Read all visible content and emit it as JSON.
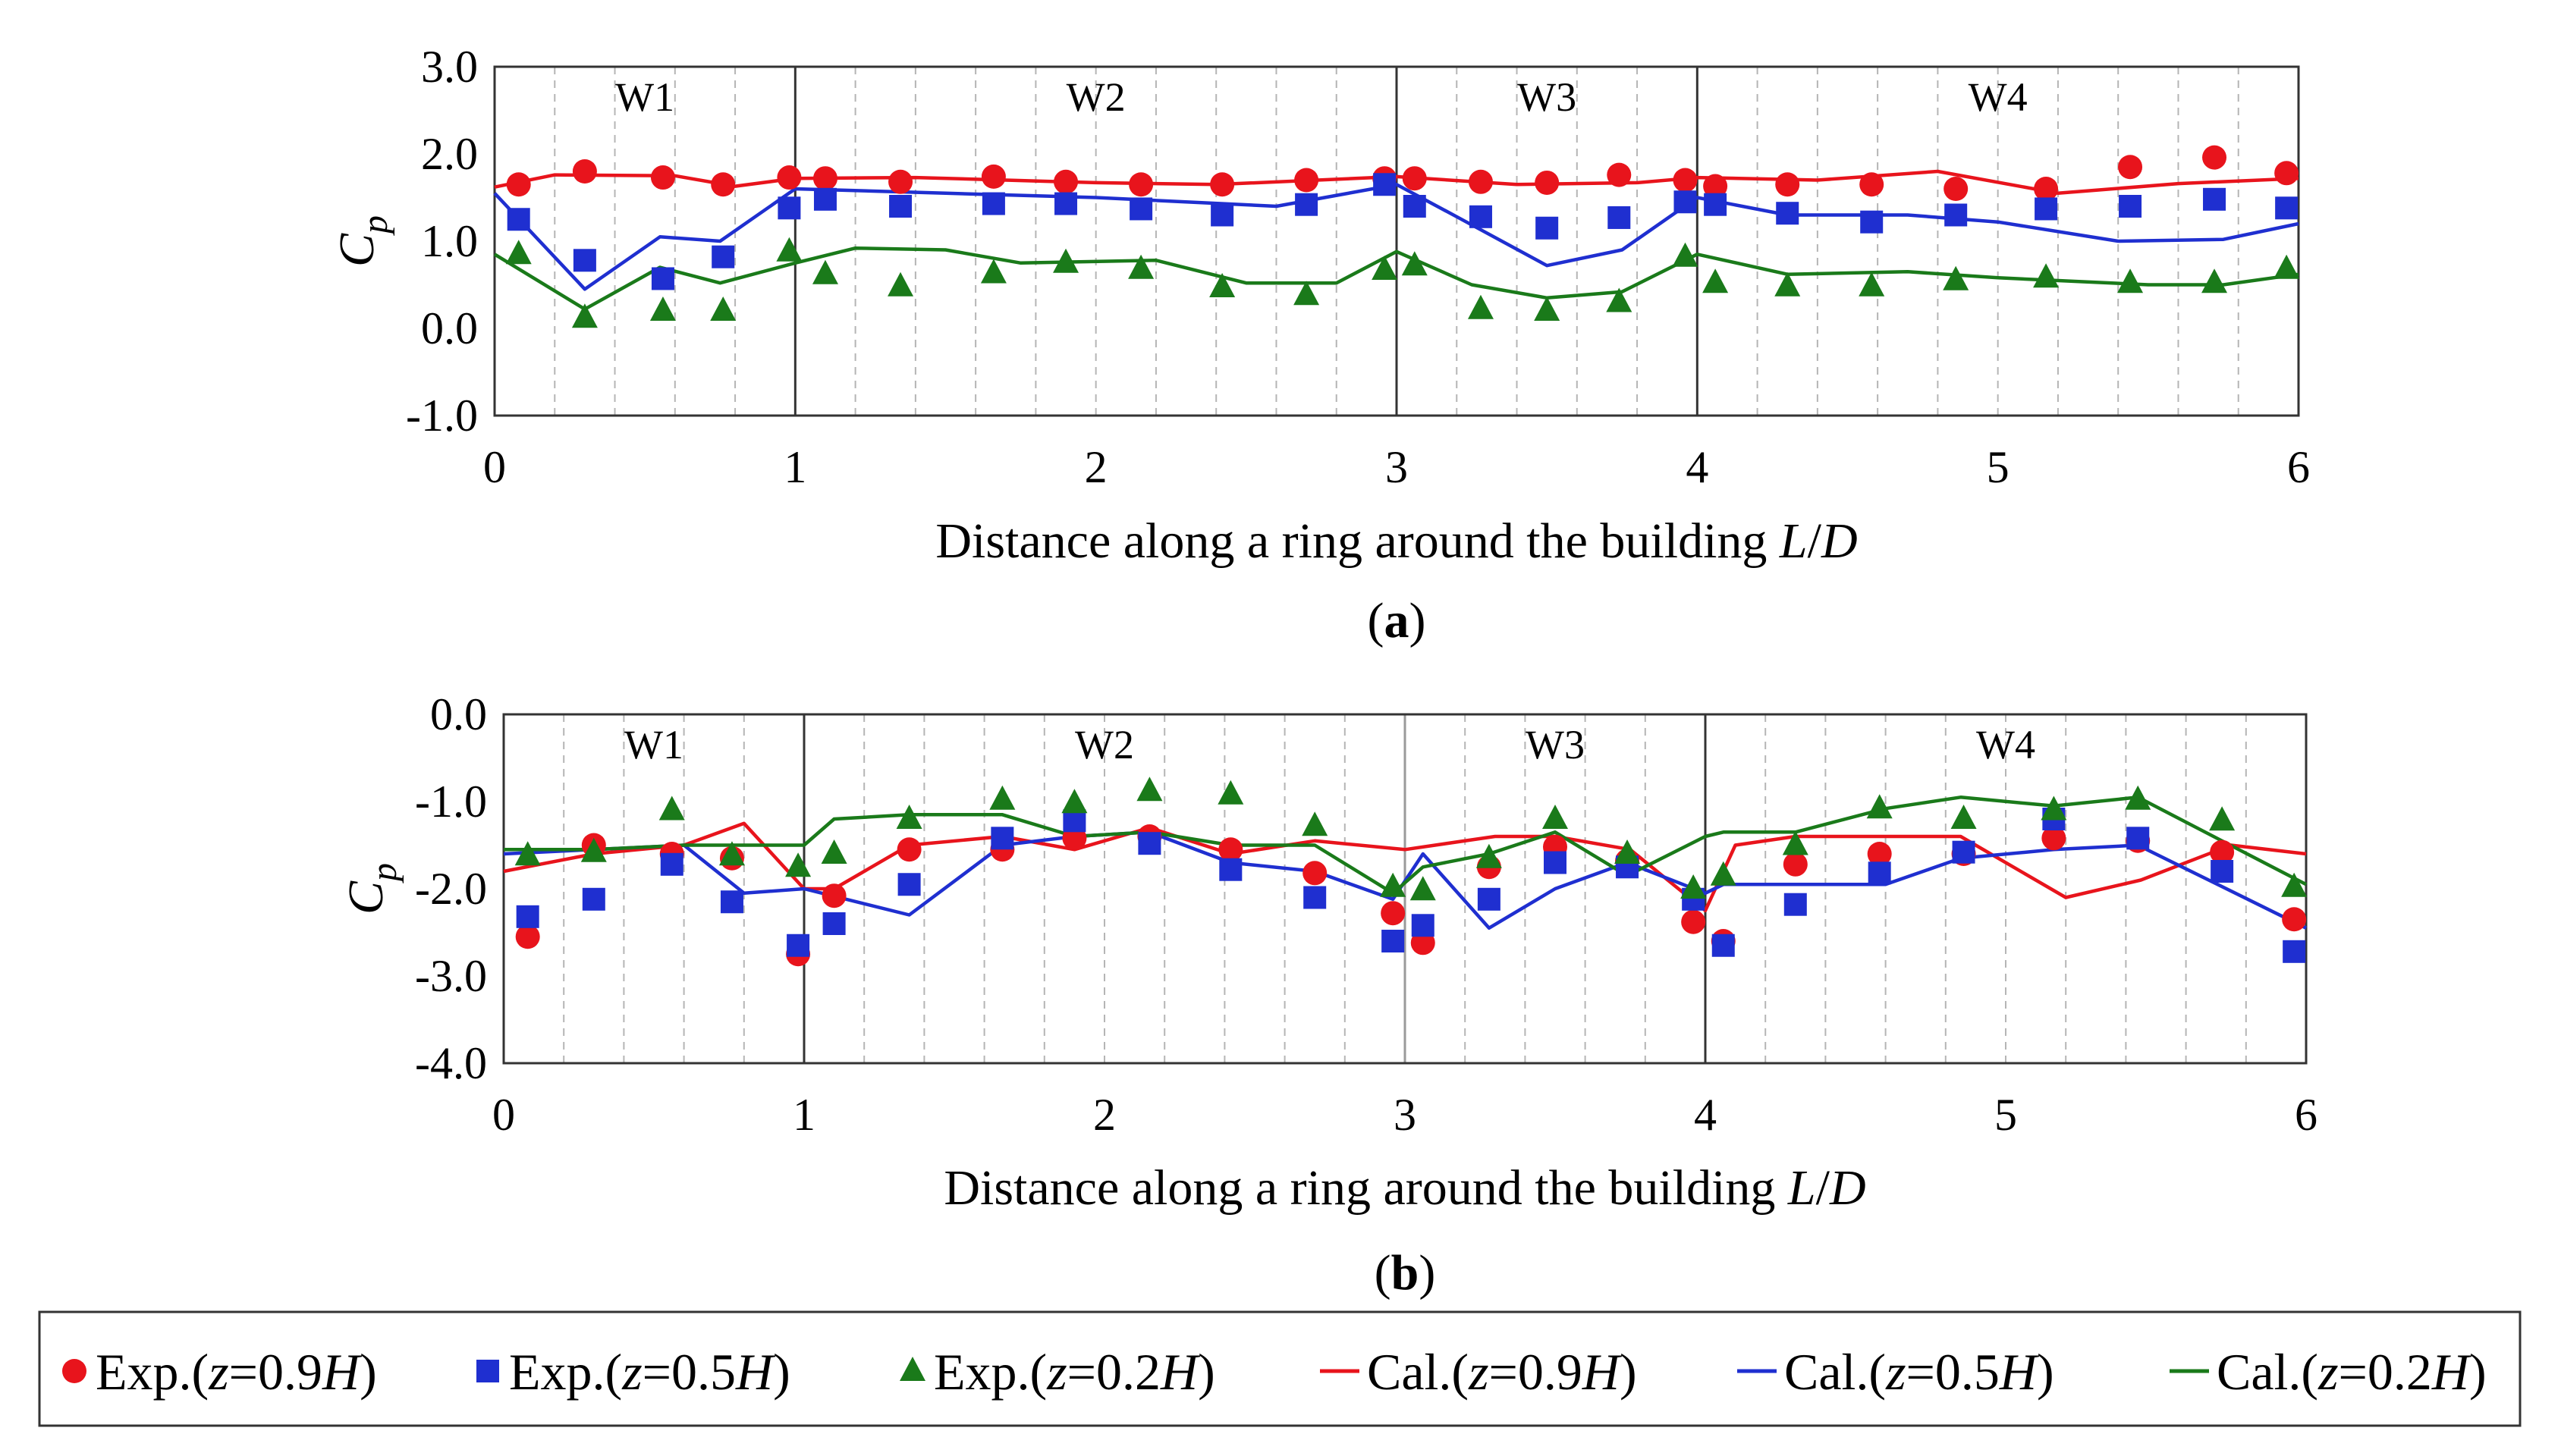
{
  "legend": [
    {
      "series_id": "exp09",
      "label_prefix": "Exp.(",
      "label_var": "z",
      "label_mid": "=0.9",
      "label_H": "H",
      "label_suffix": ")"
    },
    {
      "series_id": "exp05",
      "label_prefix": "Exp.(",
      "label_var": "z",
      "label_mid": "=0.5",
      "label_H": "H",
      "label_suffix": ")"
    },
    {
      "series_id": "exp02",
      "label_prefix": "Exp.(",
      "label_var": "z",
      "label_mid": "=0.2",
      "label_H": "H",
      "label_suffix": ")"
    },
    {
      "series_id": "cal09",
      "label_prefix": "Cal.(",
      "label_var": "z",
      "label_mid": "=0.9",
      "label_H": "H",
      "label_suffix": ")"
    },
    {
      "series_id": "cal05",
      "label_prefix": "Cal.(",
      "label_var": "z",
      "label_mid": "=0.5",
      "label_H": "H",
      "label_suffix": ")"
    },
    {
      "series_id": "cal02",
      "label_prefix": "Cal.(",
      "label_var": "z",
      "label_mid": "=0.2",
      "label_H": "H",
      "label_suffix": ")"
    }
  ],
  "colors": {
    "red": "#e8141c",
    "blue": "#1f2fd0",
    "green": "#1a7a1a"
  },
  "chart_data": [
    {
      "id": "a",
      "type": "scatter",
      "panel_label": "(a)",
      "panel_letter": "a",
      "xlabel": "Distance along a ring around the building ",
      "xlabel_italic": "L",
      "xlabel_slash": "/",
      "xlabel_italic2": "D",
      "ylabel": "C",
      "ylabel_sub": "p",
      "xlim": [
        0,
        6
      ],
      "ylim": [
        -1,
        3
      ],
      "xticks": [
        0,
        1,
        2,
        3,
        4,
        5,
        6
      ],
      "xtick_labels": [
        "0",
        "1",
        "2",
        "3",
        "4",
        "5",
        "6"
      ],
      "yticks": [
        3,
        2,
        1,
        0,
        -1
      ],
      "ytick_labels": [
        "3.0",
        "2.0",
        "1.0",
        "0.0",
        "-1.0"
      ],
      "walls": [
        1,
        3,
        4
      ],
      "regions": [
        {
          "label": "W1",
          "x": 0.5
        },
        {
          "label": "W2",
          "x": 2.0
        },
        {
          "label": "W3",
          "x": 3.5
        },
        {
          "label": "W4",
          "x": 5.0
        }
      ],
      "minor_dashed": [
        0.2,
        0.4,
        0.6,
        0.8,
        1.2,
        1.4,
        1.6,
        1.8,
        2.0,
        2.2,
        2.4,
        2.6,
        2.8,
        3.2,
        3.4,
        3.6,
        3.8,
        4.2,
        4.4,
        4.6,
        4.8,
        5.0,
        5.2,
        5.4,
        5.6,
        5.8
      ],
      "series": [
        {
          "id": "exp09",
          "name": "Exp.(z=0.9H)",
          "kind": "circle",
          "color": "red",
          "x": [
            0.08,
            0.3,
            0.56,
            0.76,
            0.98,
            1.1,
            1.35,
            1.66,
            1.9,
            2.15,
            2.42,
            2.7,
            2.96,
            3.06,
            3.28,
            3.5,
            3.74,
            3.96,
            4.06,
            4.3,
            4.58,
            4.86,
            5.16,
            5.44,
            5.72,
            5.96
          ],
          "y": [
            1.65,
            1.8,
            1.73,
            1.65,
            1.73,
            1.72,
            1.68,
            1.74,
            1.68,
            1.65,
            1.65,
            1.7,
            1.72,
            1.72,
            1.68,
            1.67,
            1.76,
            1.7,
            1.63,
            1.65,
            1.65,
            1.6,
            1.6,
            1.85,
            1.96,
            1.78
          ]
        },
        {
          "id": "exp05",
          "name": "Exp.(z=0.5H)",
          "kind": "square",
          "color": "blue",
          "x": [
            0.08,
            0.3,
            0.56,
            0.76,
            0.98,
            1.1,
            1.35,
            1.66,
            1.9,
            2.15,
            2.42,
            2.7,
            2.96,
            3.06,
            3.28,
            3.5,
            3.74,
            3.96,
            4.06,
            4.3,
            4.58,
            4.86,
            5.16,
            5.44,
            5.72,
            5.96
          ],
          "y": [
            1.25,
            0.78,
            0.57,
            0.82,
            1.38,
            1.48,
            1.4,
            1.43,
            1.43,
            1.37,
            1.3,
            1.42,
            1.65,
            1.4,
            1.28,
            1.15,
            1.27,
            1.45,
            1.42,
            1.32,
            1.22,
            1.3,
            1.37,
            1.4,
            1.48,
            1.38
          ]
        },
        {
          "id": "exp02",
          "name": "Exp.(z=0.2H)",
          "kind": "triangle",
          "color": "green",
          "x": [
            0.08,
            0.3,
            0.56,
            0.76,
            0.98,
            1.1,
            1.35,
            1.66,
            1.9,
            2.15,
            2.42,
            2.7,
            2.96,
            3.06,
            3.28,
            3.5,
            3.74,
            3.96,
            4.06,
            4.3,
            4.58,
            4.86,
            5.16,
            5.44,
            5.72,
            5.96
          ],
          "y": [
            0.85,
            0.12,
            0.2,
            0.2,
            0.88,
            0.62,
            0.48,
            0.63,
            0.75,
            0.68,
            0.47,
            0.38,
            0.67,
            0.72,
            0.22,
            0.2,
            0.3,
            0.82,
            0.52,
            0.48,
            0.48,
            0.55,
            0.58,
            0.52,
            0.52,
            0.68
          ]
        },
        {
          "id": "cal09",
          "name": "Cal.(z=0.9H)",
          "kind": "line",
          "color": "red",
          "x": [
            0.0,
            0.2,
            0.6,
            0.8,
            1.0,
            1.4,
            2.0,
            2.4,
            3.0,
            3.4,
            3.8,
            4.0,
            4.4,
            4.8,
            5.2,
            5.6,
            6.0
          ],
          "y": [
            1.62,
            1.76,
            1.75,
            1.63,
            1.72,
            1.73,
            1.67,
            1.65,
            1.74,
            1.65,
            1.67,
            1.73,
            1.7,
            1.8,
            1.55,
            1.66,
            1.72
          ]
        },
        {
          "id": "cal05",
          "name": "Cal.(z=0.5H)",
          "kind": "line",
          "color": "blue",
          "x": [
            0.0,
            0.3,
            0.55,
            0.75,
            1.0,
            1.5,
            2.0,
            2.6,
            3.0,
            3.2,
            3.5,
            3.75,
            4.0,
            4.3,
            4.7,
            5.0,
            5.4,
            5.75,
            6.0
          ],
          "y": [
            1.55,
            0.45,
            1.05,
            1.0,
            1.6,
            1.55,
            1.5,
            1.4,
            1.65,
            1.28,
            0.72,
            0.9,
            1.5,
            1.3,
            1.3,
            1.22,
            1.0,
            1.02,
            1.2
          ]
        },
        {
          "id": "cal02",
          "name": "Cal.(z=0.2H)",
          "kind": "line",
          "color": "green",
          "x": [
            0.0,
            0.3,
            0.55,
            0.75,
            1.0,
            1.2,
            1.5,
            1.75,
            2.2,
            2.5,
            2.8,
            3.0,
            3.25,
            3.5,
            3.75,
            4.0,
            4.3,
            4.7,
            5.0,
            5.5,
            5.75,
            6.0
          ],
          "y": [
            0.85,
            0.22,
            0.7,
            0.52,
            0.75,
            0.92,
            0.9,
            0.75,
            0.78,
            0.52,
            0.52,
            0.88,
            0.5,
            0.35,
            0.42,
            0.85,
            0.62,
            0.65,
            0.58,
            0.5,
            0.5,
            0.62
          ]
        }
      ]
    },
    {
      "id": "b",
      "type": "scatter",
      "panel_label": "(b)",
      "panel_letter": "b",
      "xlabel": "Distance along a ring around the building ",
      "xlabel_italic": "L",
      "xlabel_slash": "/",
      "xlabel_italic2": "D",
      "ylabel": "C",
      "ylabel_sub": "p",
      "xlim": [
        0,
        6
      ],
      "ylim": [
        -4,
        0
      ],
      "xticks": [
        0,
        1,
        2,
        3,
        4,
        5,
        6
      ],
      "xtick_labels": [
        "0",
        "1",
        "2",
        "3",
        "4",
        "5",
        "6"
      ],
      "yticks": [
        0,
        -1,
        -2,
        -3,
        -4
      ],
      "ytick_labels": [
        "0.0",
        "-1.0",
        "-2.0",
        "-3.0",
        "-4.0"
      ],
      "walls": [
        1,
        3,
        4
      ],
      "regions": [
        {
          "label": "W1",
          "x": 0.5
        },
        {
          "label": "W2",
          "x": 2.0
        },
        {
          "label": "W3",
          "x": 3.5
        },
        {
          "label": "W4",
          "x": 5.0
        }
      ],
      "minor_dashed": [
        0.2,
        0.4,
        0.6,
        0.8,
        1.2,
        1.4,
        1.6,
        1.8,
        2.0,
        2.2,
        2.4,
        2.6,
        2.8,
        3.2,
        3.4,
        3.6,
        3.8,
        4.2,
        4.4,
        4.6,
        4.8,
        5.0,
        5.2,
        5.4,
        5.6,
        5.8
      ],
      "series": [
        {
          "id": "exp09",
          "name": "Exp.(z=0.9H)",
          "kind": "circle",
          "color": "red",
          "x": [
            0.08,
            0.3,
            0.56,
            0.76,
            0.98,
            1.1,
            1.35,
            1.66,
            1.9,
            2.15,
            2.42,
            2.7,
            2.96,
            3.06,
            3.28,
            3.5,
            3.74,
            3.96,
            4.06,
            4.3,
            4.58,
            4.86,
            5.16,
            5.44,
            5.72,
            5.96
          ],
          "y": [
            -2.55,
            -1.5,
            -1.6,
            -1.65,
            -2.75,
            -2.08,
            -1.55,
            -1.55,
            -1.42,
            -1.4,
            -1.55,
            -1.82,
            -2.28,
            -2.62,
            -1.75,
            -1.52,
            -1.68,
            -2.38,
            -2.6,
            -1.72,
            -1.6,
            -1.6,
            -1.42,
            -1.45,
            -1.58,
            -2.35
          ]
        },
        {
          "id": "exp05",
          "name": "Exp.(z=0.5H)",
          "kind": "square",
          "color": "blue",
          "x": [
            0.08,
            0.3,
            0.56,
            0.76,
            0.98,
            1.1,
            1.35,
            1.66,
            1.9,
            2.15,
            2.42,
            2.7,
            2.96,
            3.06,
            3.28,
            3.5,
            3.74,
            3.96,
            4.06,
            4.3,
            4.58,
            4.86,
            5.16,
            5.44,
            5.72,
            5.96
          ],
          "y": [
            -2.32,
            -2.12,
            -1.72,
            -2.15,
            -2.65,
            -2.4,
            -1.95,
            -1.42,
            -1.22,
            -1.48,
            -1.78,
            -2.1,
            -2.6,
            -2.42,
            -2.12,
            -1.7,
            -1.75,
            -2.12,
            -2.65,
            -2.18,
            -1.82,
            -1.58,
            -1.2,
            -1.42,
            -1.8,
            -2.72
          ]
        },
        {
          "id": "exp02",
          "name": "Exp.(z=0.2H)",
          "kind": "triangle",
          "color": "green",
          "x": [
            0.08,
            0.3,
            0.56,
            0.76,
            0.98,
            1.1,
            1.35,
            1.66,
            1.9,
            2.15,
            2.42,
            2.7,
            2.96,
            3.06,
            3.28,
            3.5,
            3.74,
            3.96,
            4.06,
            4.3,
            4.58,
            4.86,
            5.16,
            5.44,
            5.72,
            5.96
          ],
          "y": [
            -1.62,
            -1.58,
            -1.1,
            -1.62,
            -1.75,
            -1.6,
            -1.2,
            -0.98,
            -1.02,
            -0.88,
            -0.92,
            -1.28,
            -1.98,
            -2.02,
            -1.65,
            -1.2,
            -1.6,
            -2.0,
            -1.85,
            -1.5,
            -1.08,
            -1.2,
            -1.1,
            -0.98,
            -1.22,
            -1.98
          ]
        },
        {
          "id": "cal09",
          "name": "Cal.(z=0.9H)",
          "kind": "line",
          "color": "red",
          "x": [
            0.0,
            0.3,
            0.6,
            0.8,
            1.0,
            1.1,
            1.35,
            1.66,
            1.9,
            2.15,
            2.42,
            2.7,
            3.0,
            3.3,
            3.5,
            3.75,
            4.0,
            4.1,
            4.3,
            4.6,
            4.85,
            5.2,
            5.45,
            5.75,
            6.0
          ],
          "y": [
            -1.8,
            -1.6,
            -1.5,
            -1.25,
            -2.0,
            -2.0,
            -1.5,
            -1.4,
            -1.55,
            -1.3,
            -1.6,
            -1.45,
            -1.55,
            -1.4,
            -1.4,
            -1.55,
            -2.25,
            -1.5,
            -1.4,
            -1.4,
            -1.4,
            -2.1,
            -1.9,
            -1.5,
            -1.6
          ]
        },
        {
          "id": "cal05",
          "name": "Cal.(z=0.5H)",
          "kind": "line",
          "color": "blue",
          "x": [
            0.0,
            0.3,
            0.6,
            0.8,
            1.0,
            1.35,
            1.66,
            1.9,
            2.15,
            2.42,
            2.7,
            2.96,
            3.06,
            3.28,
            3.5,
            3.74,
            4.0,
            4.06,
            4.3,
            4.6,
            4.85,
            5.16,
            5.44,
            6.0
          ],
          "y": [
            -1.6,
            -1.55,
            -1.5,
            -2.05,
            -2.0,
            -2.3,
            -1.5,
            -1.4,
            -1.35,
            -1.7,
            -1.8,
            -2.12,
            -1.6,
            -2.45,
            -2.0,
            -1.7,
            -2.05,
            -1.95,
            -1.95,
            -1.95,
            -1.65,
            -1.55,
            -1.5,
            -2.45
          ]
        },
        {
          "id": "cal02",
          "name": "Cal.(z=0.2H)",
          "kind": "line",
          "color": "green",
          "x": [
            0.0,
            0.3,
            0.6,
            0.8,
            1.0,
            1.1,
            1.35,
            1.66,
            1.9,
            2.15,
            2.42,
            2.7,
            2.96,
            3.06,
            3.28,
            3.5,
            3.74,
            4.0,
            4.06,
            4.3,
            4.6,
            4.85,
            5.16,
            5.44,
            6.0
          ],
          "y": [
            -1.55,
            -1.55,
            -1.5,
            -1.5,
            -1.5,
            -1.2,
            -1.15,
            -1.15,
            -1.4,
            -1.35,
            -1.5,
            -1.5,
            -2.05,
            -1.75,
            -1.6,
            -1.35,
            -1.85,
            -1.4,
            -1.35,
            -1.35,
            -1.08,
            -0.95,
            -1.05,
            -0.95,
            -1.95
          ]
        }
      ]
    }
  ]
}
